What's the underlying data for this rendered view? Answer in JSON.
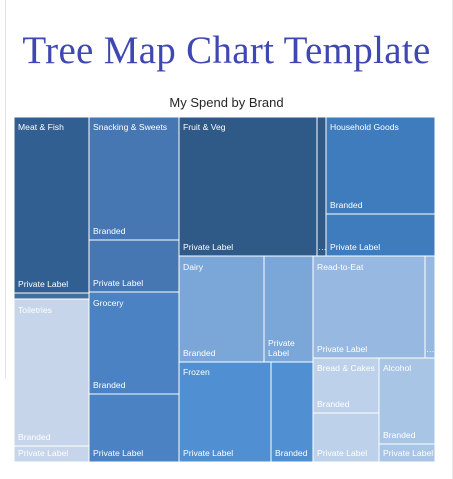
{
  "page": {
    "title": "Tree Map Chart Template"
  },
  "colors": {
    "title": "#3f47b2",
    "meat_fish": "#325f91",
    "meat_fish_gap": "#416f9e",
    "snacking": "#4677b3",
    "fruit_veg": "#2f5987",
    "household": "#3f7cbd",
    "toiletries": "#c6d5e9",
    "grocery": "#4a82c3",
    "dairy": "#7ba6d8",
    "frozen": "#5090d2",
    "read_to_eat": "#96b8e1",
    "bread_cakes": "#bdd1ea",
    "alcohol": "#a9c5e6"
  },
  "chart_data": {
    "type": "treemap",
    "title": "My Spend by Brand",
    "categories": [
      {
        "name": "Meat & Fish",
        "items": [
          {
            "label": "Private Label"
          },
          {
            "label": ""
          }
        ]
      },
      {
        "name": "Snacking & Sweets",
        "items": [
          {
            "label": "Branded"
          },
          {
            "label": "Private Label"
          }
        ]
      },
      {
        "name": "Fruit & Veg",
        "items": [
          {
            "label": "Private Label"
          },
          {
            "label": ""
          }
        ]
      },
      {
        "name": "Household Goods",
        "items": [
          {
            "label": "Branded"
          },
          {
            "label": "Private Label"
          },
          {
            "label": ""
          }
        ]
      },
      {
        "name": "Toiletries",
        "items": [
          {
            "label": "Branded"
          },
          {
            "label": "Private Label"
          }
        ]
      },
      {
        "name": "Grocery",
        "items": [
          {
            "label": "Branded"
          },
          {
            "label": "Private Label"
          }
        ]
      },
      {
        "name": "Dairy",
        "items": [
          {
            "label": "Branded"
          },
          {
            "label": "Private Label"
          }
        ]
      },
      {
        "name": "Frozen",
        "items": [
          {
            "label": "Private Label"
          },
          {
            "label": "Branded"
          }
        ]
      },
      {
        "name": "Read-to-Eat",
        "items": [
          {
            "label": "Private Label"
          },
          {
            "label": ""
          }
        ]
      },
      {
        "name": "Bread & Cakes",
        "items": [
          {
            "label": "Branded"
          },
          {
            "label": "Private Label"
          }
        ]
      },
      {
        "name": "Alcohol",
        "items": [
          {
            "label": "Branded"
          },
          {
            "label": "Private Label"
          }
        ]
      }
    ]
  }
}
